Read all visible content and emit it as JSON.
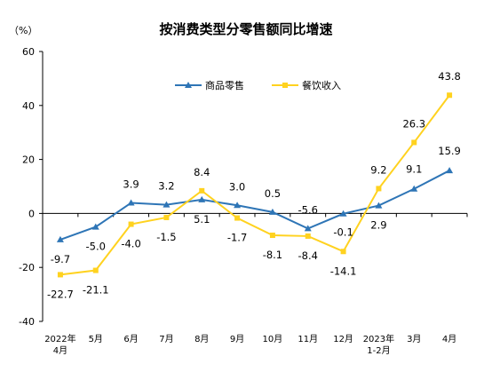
{
  "chart_data": {
    "type": "line",
    "title": "按消费类型分零售额同比增速",
    "unit": "（%）",
    "categories": [
      [
        "2022年",
        "4月"
      ],
      [
        "5月"
      ],
      [
        "6月"
      ],
      [
        "7月"
      ],
      [
        "8月"
      ],
      [
        "9月"
      ],
      [
        "10月"
      ],
      [
        "11月"
      ],
      [
        "12月"
      ],
      [
        "2023年",
        "1-2月"
      ],
      [
        "3月"
      ],
      [
        "4月"
      ]
    ],
    "yticks": [
      -40,
      -20,
      0,
      20,
      40,
      60
    ],
    "ylim": [
      -40,
      60
    ],
    "legend_position": "top",
    "series": [
      {
        "name": "商品零售",
        "color": "#2E75B6",
        "marker": "triangle",
        "values": [
          -9.7,
          -5.0,
          3.9,
          3.2,
          5.1,
          3.0,
          0.5,
          -5.6,
          -0.1,
          2.9,
          9.1,
          15.9
        ],
        "labels": [
          "-9.7",
          "-5.0",
          "3.9",
          "3.2",
          "5.1",
          "3.0",
          "0.5",
          "-5.6",
          "-0.1",
          "2.9",
          "9.1",
          "15.9"
        ]
      },
      {
        "name": "餐饮收入",
        "color": "#FFD21F",
        "marker": "square",
        "values": [
          -22.7,
          -21.1,
          -4.0,
          -1.5,
          8.4,
          -1.7,
          -8.1,
          -8.4,
          -14.1,
          9.2,
          26.3,
          43.8
        ],
        "labels": [
          "-22.7",
          "-21.1",
          "-4.0",
          "-1.5",
          "8.4",
          "-1.7",
          "-8.1",
          "-8.4",
          "-14.1",
          "9.2",
          "26.3",
          "43.8"
        ]
      }
    ]
  }
}
